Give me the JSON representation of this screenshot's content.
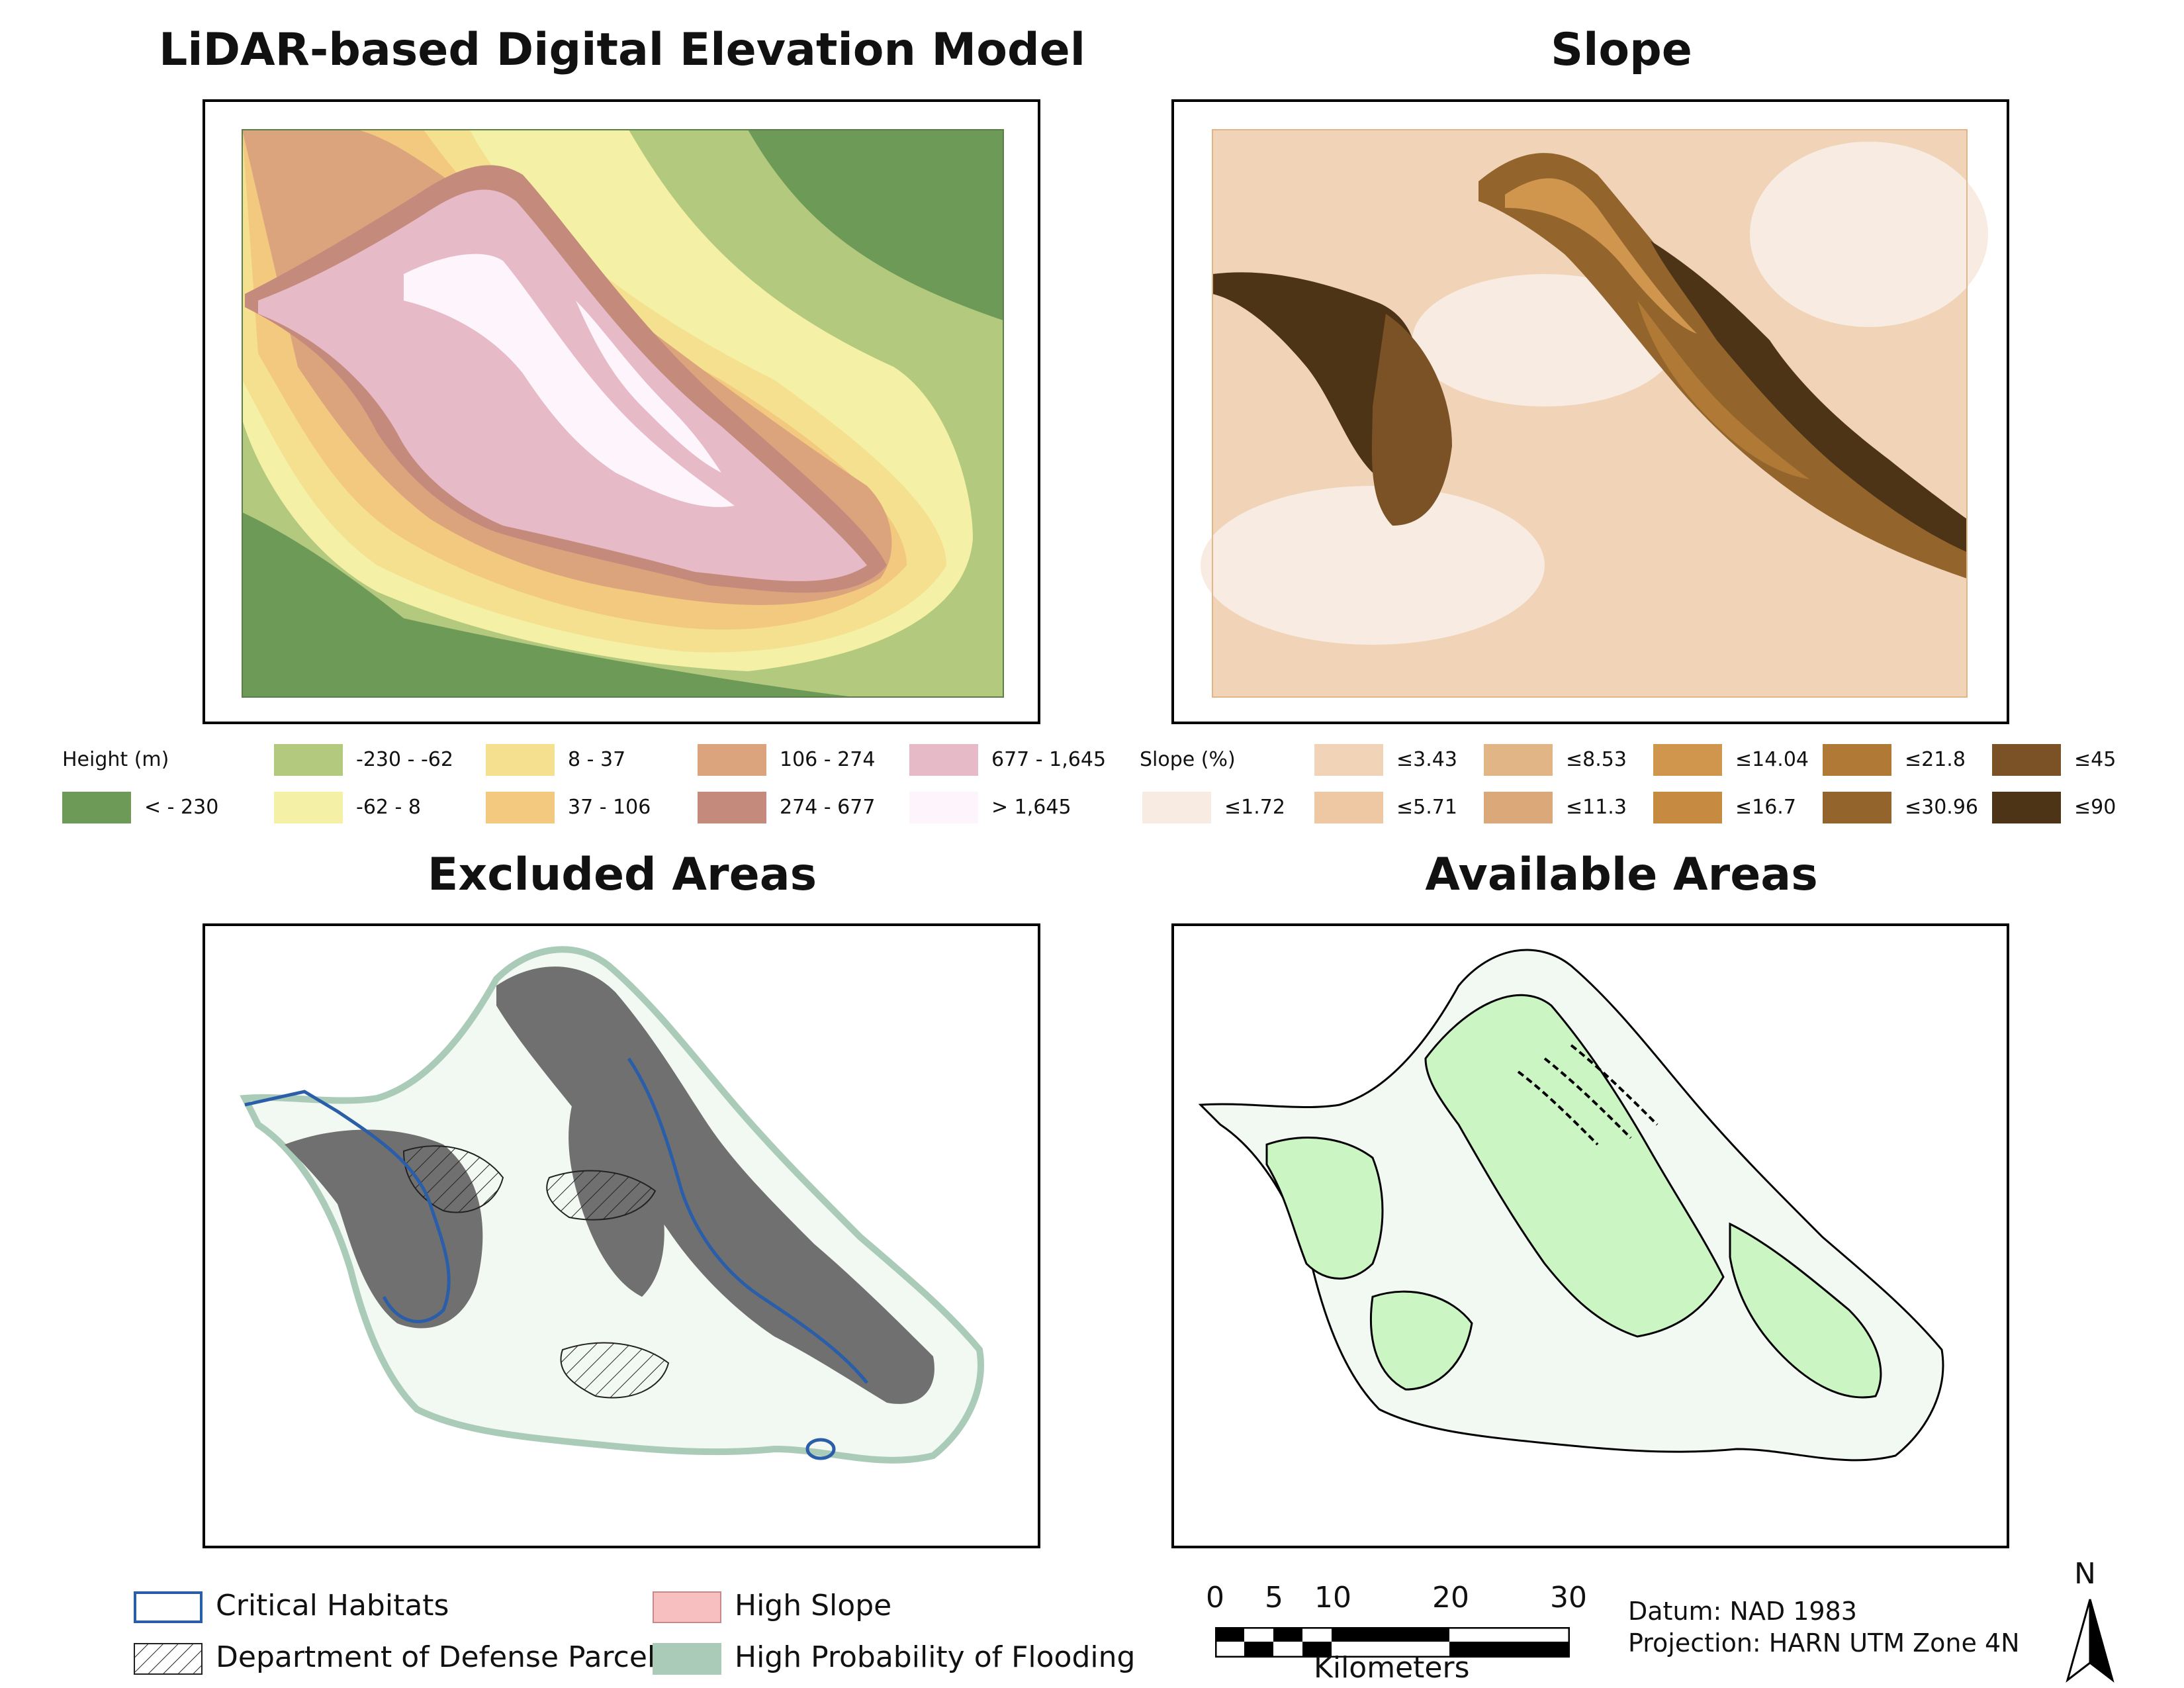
{
  "panels": {
    "dem": {
      "title": "LiDAR-based Digital Elevation Model"
    },
    "slope": {
      "title": "Slope"
    },
    "excluded": {
      "title": "Excluded Areas"
    },
    "available": {
      "title": "Available Areas"
    }
  },
  "dem_legend": {
    "heading": "Height (m)",
    "classes": [
      {
        "label": "< - 230",
        "color": "#6e9a58"
      },
      {
        "label": "-230 - -62",
        "color": "#b2c97e"
      },
      {
        "label": "-62 - 8",
        "color": "#f4f0a6"
      },
      {
        "label": "8 - 37",
        "color": "#f4e08e"
      },
      {
        "label": "37 - 106",
        "color": "#f2c97e"
      },
      {
        "label": "106 - 274",
        "color": "#dba47c"
      },
      {
        "label": "274 - 677",
        "color": "#c48a7c"
      },
      {
        "label": "677 - 1,645",
        "color": "#e6bac6"
      },
      {
        "label": "> 1,645",
        "color": "#fdf4fc"
      }
    ]
  },
  "slope_legend": {
    "heading": "Slope (%)",
    "classes": [
      {
        "label": "≤1.72",
        "color": "#f8ebe2"
      },
      {
        "label": "≤3.43",
        "color": "#f1d4b8"
      },
      {
        "label": "≤5.71",
        "color": "#eec8a2"
      },
      {
        "label": "≤8.53",
        "color": "#e2b586"
      },
      {
        "label": "≤11.3",
        "color": "#dba87a"
      },
      {
        "label": "≤14.04",
        "color": "#d0964e"
      },
      {
        "label": "≤16.7",
        "color": "#c68a40"
      },
      {
        "label": "≤21.8",
        "color": "#b07a36"
      },
      {
        "label": "≤30.96",
        "color": "#93652c"
      },
      {
        "label": "≤45",
        "color": "#7a5226"
      },
      {
        "label": "≤90",
        "color": "#4e3417"
      }
    ]
  },
  "bottom_legend": {
    "critical_habitats": "Critical Habitats",
    "dod_parcels": "Department of Defense Parcels",
    "high_slope": "High Slope",
    "flooding": "High Probability of Flooding",
    "colors": {
      "critical": "#2a5ea8",
      "high_slope": "#f7bfc0",
      "flooding": "#a9cbb8"
    }
  },
  "scale_bar": {
    "ticks": [
      "0",
      "5",
      "10",
      "20",
      "30"
    ],
    "unit": "Kilometers"
  },
  "map_info": {
    "datum": "Datum: NAD 1983",
    "projection": "Projection: HARN UTM Zone 4N"
  },
  "north_arrow": {
    "label": "N"
  }
}
